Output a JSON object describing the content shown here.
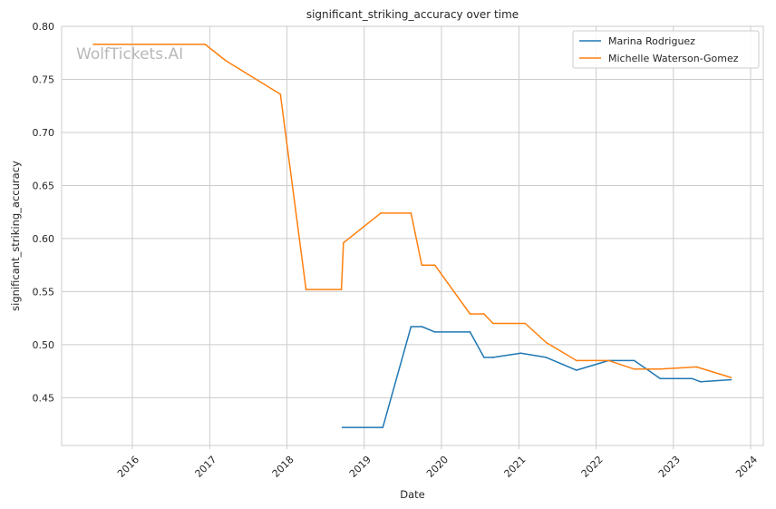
{
  "chart_data": {
    "type": "line",
    "title": "significant_striking_accuracy over time",
    "xlabel": "Date",
    "ylabel": "significant_striking_accuracy",
    "watermark": "WolfTickets.AI",
    "xlim": [
      "2015-02-01",
      "2024-03-01"
    ],
    "ylim": [
      0.405,
      0.8
    ],
    "x_ticks": [
      "2016-01-01",
      "2017-01-01",
      "2018-01-01",
      "2019-01-01",
      "2020-01-01",
      "2021-01-01",
      "2022-01-01",
      "2023-01-01",
      "2024-01-01"
    ],
    "x_tick_labels": [
      "2016",
      "2017",
      "2018",
      "2019",
      "2020",
      "2021",
      "2022",
      "2023",
      "2024"
    ],
    "y_ticks": [
      0.45,
      0.5,
      0.55,
      0.6,
      0.65,
      0.7,
      0.75,
      0.8
    ],
    "y_tick_labels": [
      "0.45",
      "0.50",
      "0.55",
      "0.60",
      "0.65",
      "0.70",
      "0.75",
      "0.80"
    ],
    "grid": true,
    "legend_position": "top-right",
    "series": [
      {
        "name": "Marina Rodriguez",
        "color": "#1f77b4",
        "points": [
          [
            "2018-09-20",
            0.422
          ],
          [
            "2019-03-30",
            0.422
          ],
          [
            "2019-08-10",
            0.517
          ],
          [
            "2019-10-01",
            0.517
          ],
          [
            "2019-12-01",
            0.512
          ],
          [
            "2020-05-15",
            0.512
          ],
          [
            "2020-07-20",
            0.488
          ],
          [
            "2020-09-01",
            0.488
          ],
          [
            "2021-01-10",
            0.492
          ],
          [
            "2021-05-10",
            0.488
          ],
          [
            "2021-09-30",
            0.476
          ],
          [
            "2022-03-01",
            0.485
          ],
          [
            "2022-06-30",
            0.485
          ],
          [
            "2022-10-31",
            0.468
          ],
          [
            "2023-03-31",
            0.468
          ],
          [
            "2023-05-10",
            0.465
          ],
          [
            "2023-10-01",
            0.467
          ]
        ]
      },
      {
        "name": "Michelle Waterson-Gomez",
        "color": "#ff7f0e",
        "points": [
          [
            "2015-07-01",
            0.783
          ],
          [
            "2016-12-10",
            0.783
          ],
          [
            "2017-03-15",
            0.768
          ],
          [
            "2017-12-01",
            0.736
          ],
          [
            "2018-04-01",
            0.552
          ],
          [
            "2018-09-15",
            0.552
          ],
          [
            "2018-09-25",
            0.596
          ],
          [
            "2019-03-20",
            0.624
          ],
          [
            "2019-08-10",
            0.624
          ],
          [
            "2019-09-30",
            0.575
          ],
          [
            "2019-12-01",
            0.575
          ],
          [
            "2020-05-15",
            0.529
          ],
          [
            "2020-07-20",
            0.529
          ],
          [
            "2020-09-01",
            0.52
          ],
          [
            "2021-01-31",
            0.52
          ],
          [
            "2021-05-10",
            0.502
          ],
          [
            "2021-09-30",
            0.485
          ],
          [
            "2022-03-01",
            0.485
          ],
          [
            "2022-06-30",
            0.477
          ],
          [
            "2022-10-31",
            0.477
          ],
          [
            "2023-04-20",
            0.479
          ],
          [
            "2023-10-01",
            0.469
          ]
        ]
      }
    ]
  }
}
